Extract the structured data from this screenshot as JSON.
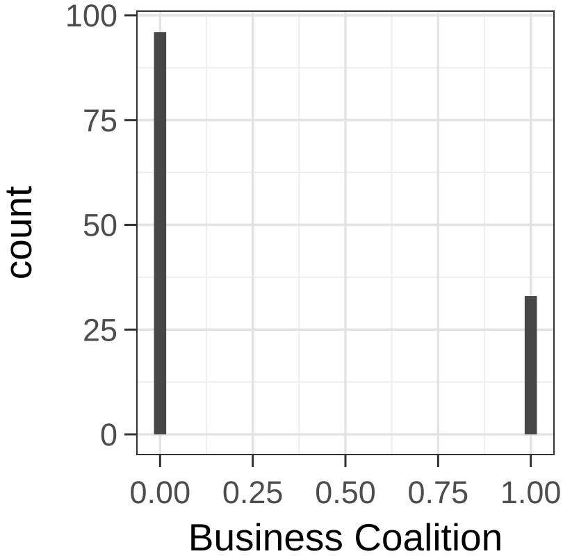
{
  "chart_data": {
    "type": "bar",
    "xlabel": "Business Coalition",
    "ylabel": "count",
    "x_ticks": [
      0.0,
      0.25,
      0.5,
      0.75,
      1.0
    ],
    "x_tick_labels": [
      "0.00",
      "0.25",
      "0.50",
      "0.75",
      "1.00"
    ],
    "y_ticks": [
      0,
      25,
      50,
      75,
      100
    ],
    "y_tick_labels": [
      "0",
      "25",
      "50",
      "75",
      "100"
    ],
    "xlim": [
      -0.0625,
      1.0625
    ],
    "ylim": [
      -4.8,
      101
    ],
    "bar_width": 0.033,
    "bars": [
      {
        "x": 0.0,
        "value": 96
      },
      {
        "x": 1.0,
        "value": 33
      }
    ],
    "grid": true,
    "colors": {
      "bar": "#474747",
      "grid_major": "#e3e3e3",
      "grid_minor": "#eeeeee",
      "panel_border": "#333333",
      "tick_text": "#4d4d4d",
      "title_text": "#000000"
    }
  }
}
